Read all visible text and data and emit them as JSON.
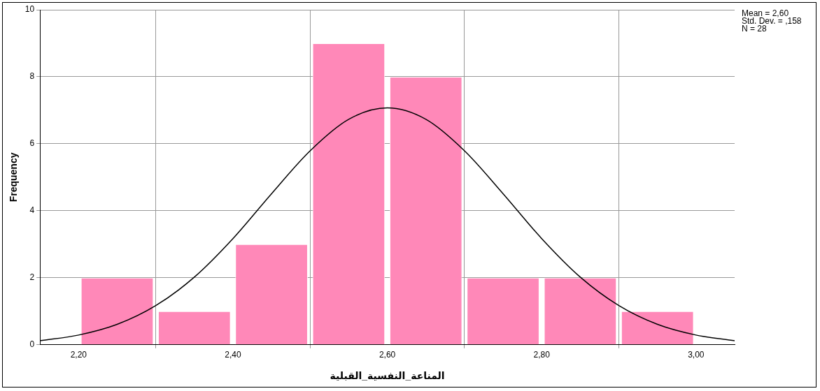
{
  "chart_data": {
    "type": "histogram",
    "xlabel": "المناعة_النفسية_القبلية",
    "ylabel": "Frequency",
    "bins": [
      2.2,
      2.3,
      2.4,
      2.5,
      2.6,
      2.7,
      2.8,
      2.9,
      3.0
    ],
    "values": [
      2,
      1,
      3,
      9,
      8,
      2,
      2,
      1
    ],
    "color": "#ff88b8",
    "series": [
      {
        "type": "line",
        "color": "#000000",
        "x": [
          2.15,
          2.2,
          2.25,
          2.3,
          2.35,
          2.4,
          2.45,
          2.5,
          2.55,
          2.6,
          2.65,
          2.7,
          2.75,
          2.8,
          2.85,
          2.9,
          2.95,
          3.0,
          3.05
        ],
        "values": [
          0.12,
          0.29,
          0.61,
          1.17,
          2.02,
          3.17,
          4.51,
          5.79,
          6.73,
          7.07,
          6.73,
          5.79,
          4.51,
          3.17,
          2.02,
          1.17,
          0.61,
          0.29,
          0.12
        ]
      }
    ],
    "xlim": [
      2.15,
      3.05
    ],
    "xticks": [
      {
        "value": 2.2,
        "label": "2,20"
      },
      {
        "value": 2.4,
        "label": "2,40"
      },
      {
        "value": 2.6,
        "label": "2,60"
      },
      {
        "value": 2.8,
        "label": "2,80"
      },
      {
        "value": 3.0,
        "label": "3,00"
      }
    ],
    "ylim": [
      0,
      10
    ],
    "yticks": [
      0,
      2,
      4,
      6,
      8,
      10
    ],
    "grid": true,
    "legend": false,
    "marker": "none",
    "annotations": [
      "Mean = 2,60",
      "Std. Dev. = ,158",
      "N = 28"
    ]
  }
}
